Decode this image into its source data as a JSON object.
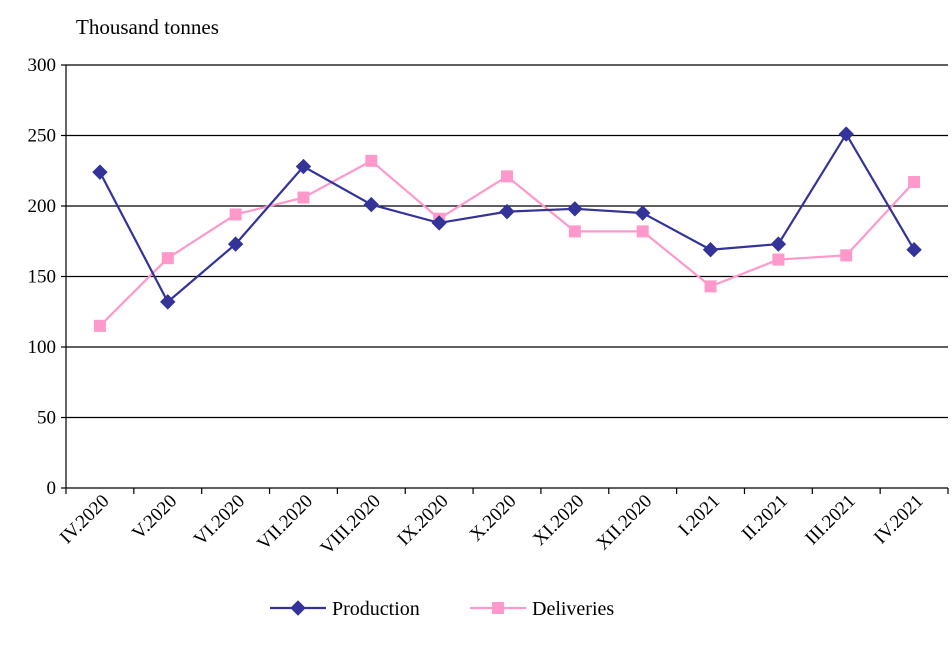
{
  "chart_data": {
    "type": "line",
    "ylabel": "Thousand tonnes",
    "categories": [
      "IV.2020",
      "V.2020",
      "VI.2020",
      "VII.2020",
      "VIII.2020",
      "IX.2020",
      "X.2020",
      "XI.2020",
      "XII.2020",
      "I.2021",
      "II.2021",
      "III.2021",
      "IV.2021"
    ],
    "ylim": [
      0,
      300
    ],
    "yticks": [
      "0",
      "50",
      "100",
      "150",
      "200",
      "250",
      "300"
    ],
    "grid": true,
    "legend_position": "bottom",
    "series": [
      {
        "name": "Production",
        "color": "#333399",
        "marker": "diamond",
        "values": [
          224,
          132,
          173,
          228,
          201,
          188,
          196,
          198,
          195,
          169,
          173,
          251,
          169
        ]
      },
      {
        "name": "Deliveries",
        "color": "#FF99CC",
        "marker": "square",
        "values": [
          115,
          163,
          194,
          206,
          232,
          191,
          221,
          182,
          182,
          143,
          162,
          165,
          217
        ]
      }
    ]
  }
}
